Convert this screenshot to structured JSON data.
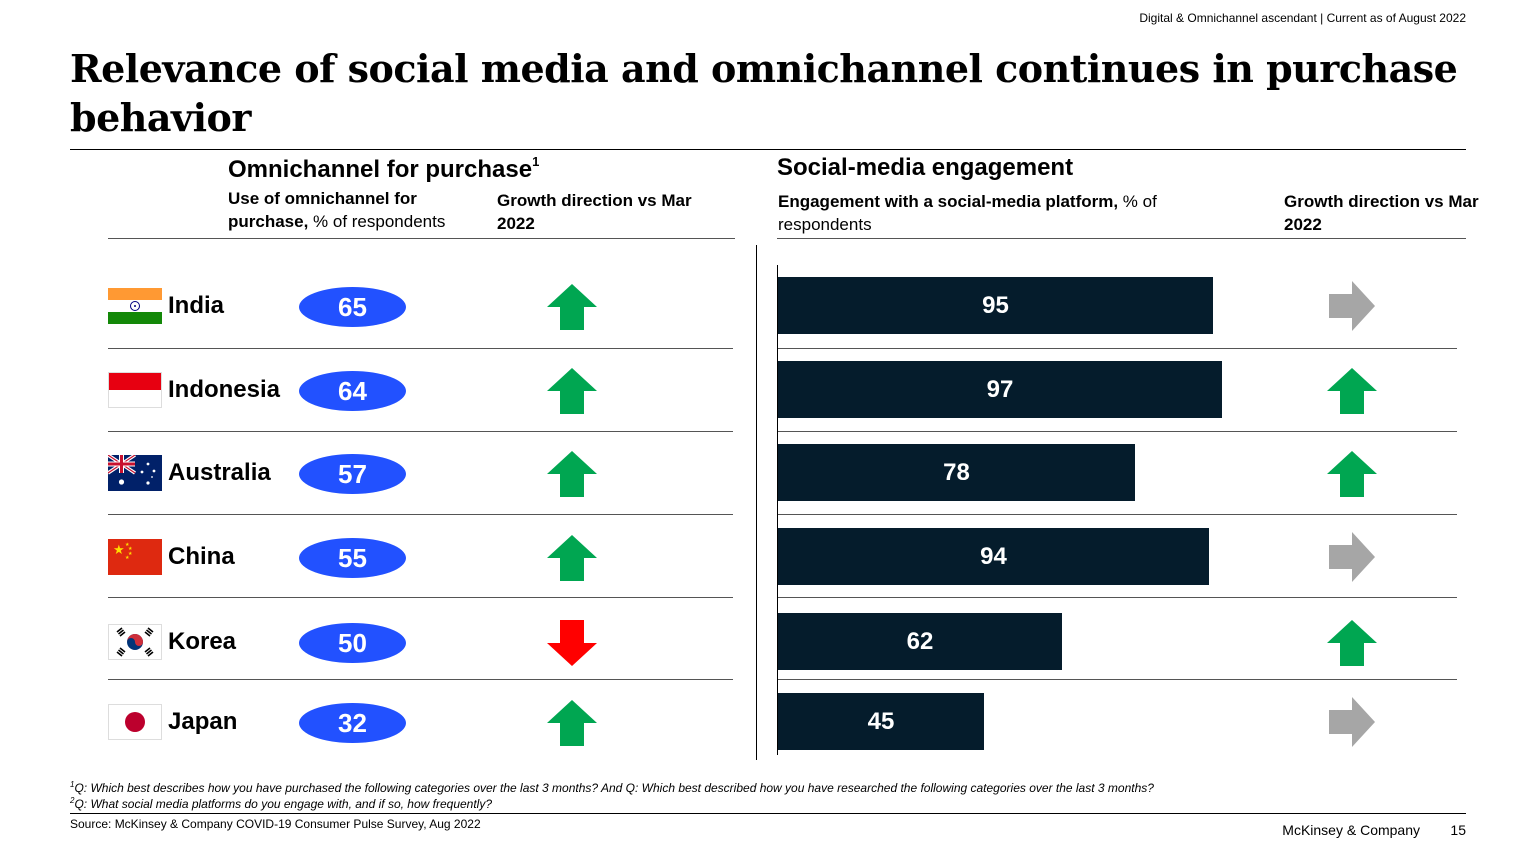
{
  "top_note": "Digital & Omnichannel ascendant | Current as of August 2022",
  "title": "Relevance of social media and omnichannel continues in purchase behavior",
  "left": {
    "title": "Omnichannel for purchase",
    "title_sup": "1",
    "subtitle_bold": "Use of omnichannel for purchase,",
    "subtitle_rest": " % of respondents",
    "growth_header": "Growth direction vs Mar 2022"
  },
  "right": {
    "title": "Social-media engagement",
    "subtitle_bold": "Engagement with a social-media platform,",
    "subtitle_rest": " % of respondents",
    "growth_header": "Growth direction vs Mar 2022"
  },
  "chart_data": {
    "type": "bar",
    "categories": [
      "India",
      "Indonesia",
      "Australia",
      "China",
      "Korea",
      "Japan"
    ],
    "series": [
      {
        "name": "Omnichannel for purchase",
        "values": [
          65,
          64,
          57,
          55,
          50,
          32
        ],
        "growth": [
          "up",
          "up",
          "up",
          "up",
          "down",
          "up"
        ]
      },
      {
        "name": "Social-media engagement",
        "values": [
          95,
          97,
          78,
          94,
          62,
          45
        ],
        "growth": [
          "flat",
          "up",
          "up",
          "flat",
          "up",
          "flat"
        ]
      }
    ],
    "xlim": [
      0,
      100
    ],
    "colors": {
      "pill": "#2251ff",
      "bar": "#051c2c",
      "up": "#00a651",
      "down": "#ff0000",
      "flat": "#a6a6a6"
    }
  },
  "footnotes": [
    {
      "sup": "1",
      "text": "Q: Which best describes how you have purchased the following categories over the last 3 months? And Q: Which best described how you have researched the following categories over the last 3 months?"
    },
    {
      "sup": "2",
      "text": "Q: What social media platforms do you engage with, and if so, how frequently?"
    }
  ],
  "source": "Source: McKinsey & Company COVID-19 Consumer Pulse Survey, Aug 2022",
  "brand": "McKinsey & Company",
  "page_number": "15"
}
